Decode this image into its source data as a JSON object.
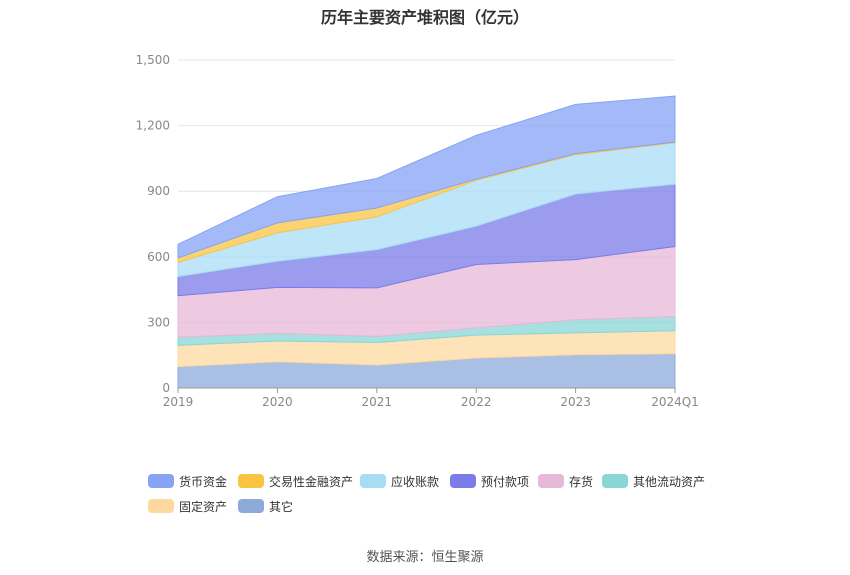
{
  "title": "历年主要资产堆积图（亿元）",
  "source": "数据来源：恒生聚源",
  "chart_data": {
    "type": "area",
    "stacked": true,
    "categories": [
      "2019",
      "2020",
      "2021",
      "2022",
      "2023",
      "2024Q1"
    ],
    "y_ticks": [
      "0",
      "300",
      "600",
      "900",
      "1,200",
      "1,500"
    ],
    "ylim": [
      0,
      1500
    ],
    "grid": true,
    "legend_position": "bottom",
    "series": [
      {
        "name": "其它",
        "color": "#8eaadb",
        "values": [
          98,
          120,
          105,
          137,
          152,
          157
        ]
      },
      {
        "name": "固定资产",
        "color": "#fdd9a0",
        "values": [
          97,
          95,
          103,
          105,
          100,
          105
        ]
      },
      {
        "name": "其他流动资产",
        "color": "#8ad6d6",
        "values": [
          37,
          35,
          28,
          33,
          60,
          65
        ]
      },
      {
        "name": "存货",
        "color": "#e8b8d8",
        "values": [
          190,
          210,
          222,
          290,
          275,
          320
        ]
      },
      {
        "name": "预付款项",
        "color": "#7b7bea",
        "values": [
          88,
          120,
          175,
          175,
          300,
          285
        ]
      },
      {
        "name": "应收账款",
        "color": "#a8dcf5",
        "values": [
          65,
          130,
          150,
          210,
          180,
          190
        ]
      },
      {
        "name": "交易性金融资产",
        "color": "#fac443",
        "values": [
          20,
          45,
          40,
          5,
          5,
          3
        ]
      },
      {
        "name": "货币资金",
        "color": "#86a3f5",
        "values": [
          62,
          120,
          135,
          200,
          225,
          210
        ]
      }
    ],
    "legend_order": [
      "货币资金",
      "交易性金融资产",
      "应收账款",
      "预付款项",
      "存货",
      "其他流动资产",
      "固定资产",
      "其它"
    ]
  }
}
